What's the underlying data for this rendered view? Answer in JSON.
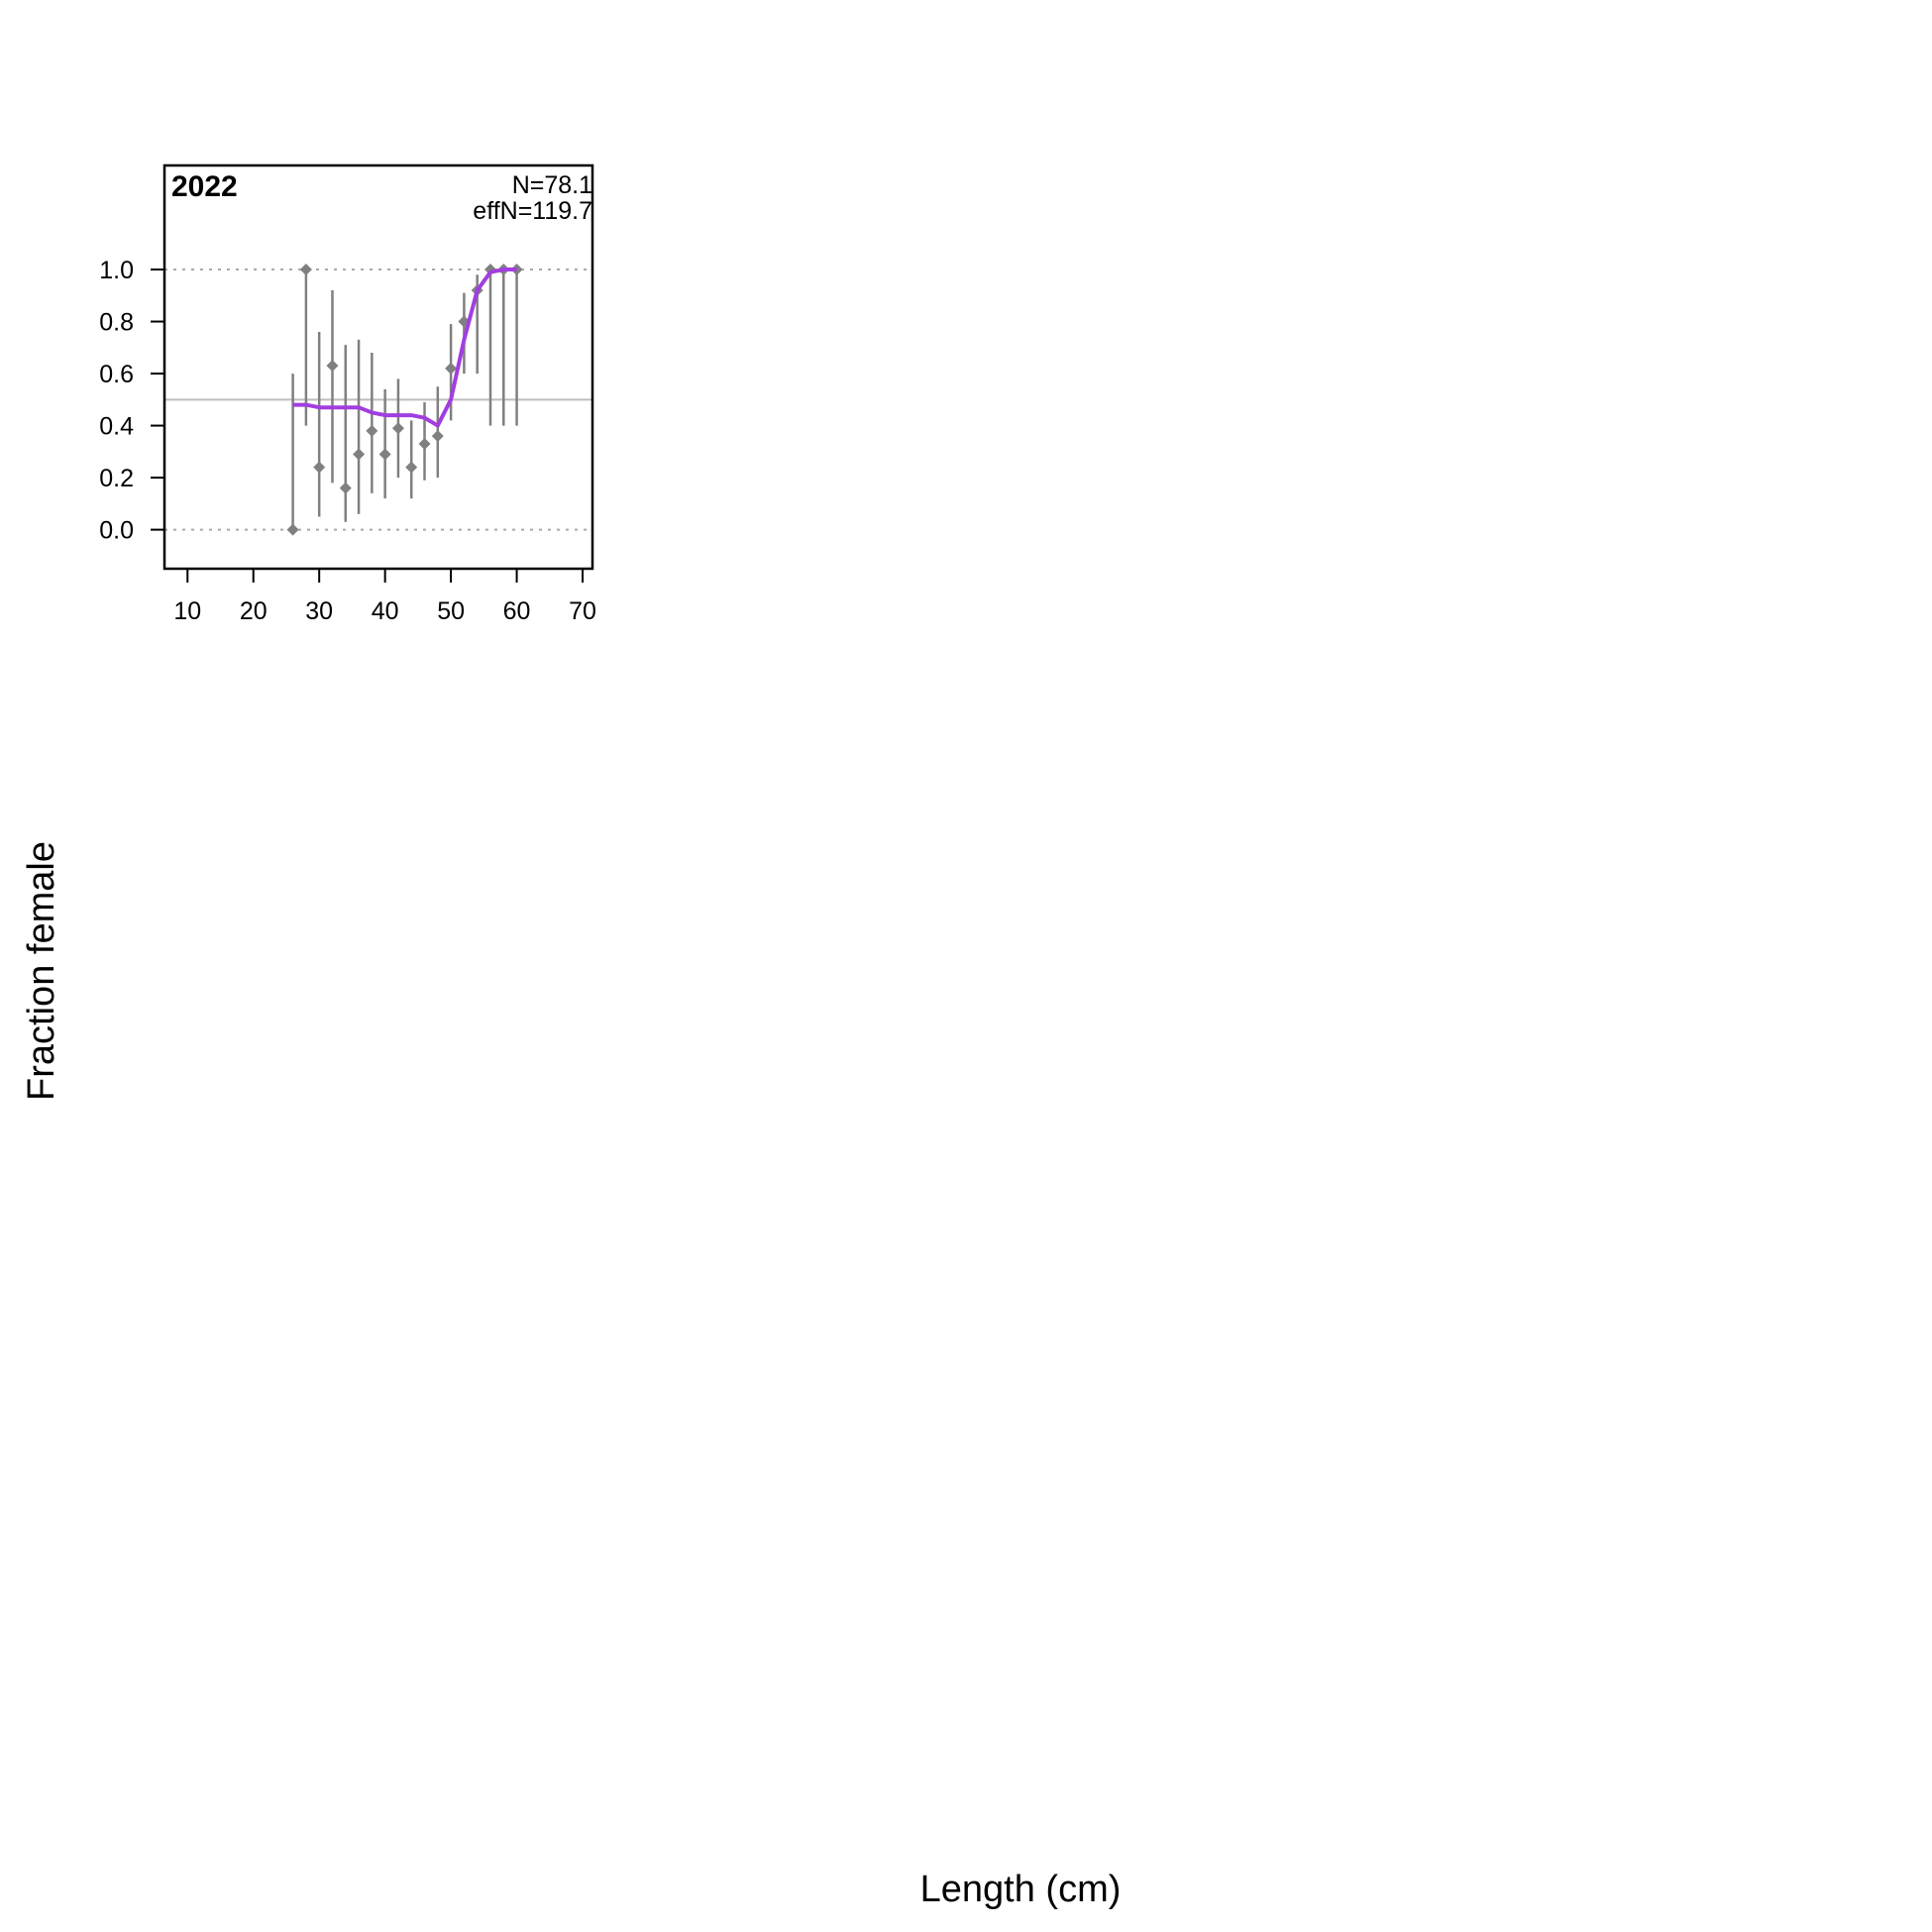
{
  "chart_data": {
    "type": "scatter",
    "panel_label": "2022",
    "annotations": [
      "N=78.1",
      "effN=119.7"
    ],
    "xlabel": "Length (cm)",
    "ylabel": "Fraction female",
    "xlim": [
      6.5,
      71.5
    ],
    "ylim": [
      -0.15,
      1.4
    ],
    "xticks": [
      "10",
      "20",
      "30",
      "40",
      "50",
      "60",
      "70"
    ],
    "yticks": [
      "0.0",
      "0.2",
      "0.4",
      "0.6",
      "0.8",
      "1.0"
    ],
    "reference_lines": [
      0.0,
      0.5,
      1.0
    ],
    "colors": {
      "observed": "#808080",
      "expected": "#a23ee0",
      "ref_line": "#bebebe",
      "frame": "#000000"
    },
    "observed": [
      {
        "x": 26,
        "y": 0.0,
        "lo": 0.0,
        "hi": 0.6
      },
      {
        "x": 28,
        "y": 1.0,
        "lo": 0.4,
        "hi": 1.0
      },
      {
        "x": 30,
        "y": 0.24,
        "lo": 0.05,
        "hi": 0.76
      },
      {
        "x": 32,
        "y": 0.63,
        "lo": 0.18,
        "hi": 0.92
      },
      {
        "x": 34,
        "y": 0.16,
        "lo": 0.03,
        "hi": 0.71
      },
      {
        "x": 36,
        "y": 0.29,
        "lo": 0.06,
        "hi": 0.73
      },
      {
        "x": 38,
        "y": 0.38,
        "lo": 0.14,
        "hi": 0.68
      },
      {
        "x": 40,
        "y": 0.29,
        "lo": 0.12,
        "hi": 0.54
      },
      {
        "x": 42,
        "y": 0.39,
        "lo": 0.2,
        "hi": 0.58
      },
      {
        "x": 44,
        "y": 0.24,
        "lo": 0.12,
        "hi": 0.42
      },
      {
        "x": 46,
        "y": 0.33,
        "lo": 0.19,
        "hi": 0.49
      },
      {
        "x": 48,
        "y": 0.36,
        "lo": 0.2,
        "hi": 0.55
      },
      {
        "x": 50,
        "y": 0.62,
        "lo": 0.42,
        "hi": 0.79
      },
      {
        "x": 52,
        "y": 0.8,
        "lo": 0.6,
        "hi": 0.91
      },
      {
        "x": 54,
        "y": 0.92,
        "lo": 0.6,
        "hi": 0.98
      },
      {
        "x": 56,
        "y": 1.0,
        "lo": 0.4,
        "hi": 1.0
      },
      {
        "x": 58,
        "y": 1.0,
        "lo": 0.4,
        "hi": 1.0
      },
      {
        "x": 60,
        "y": 1.0,
        "lo": 0.4,
        "hi": 1.0
      }
    ],
    "expected": {
      "x": [
        26,
        28,
        30,
        32,
        34,
        36,
        38,
        40,
        42,
        44,
        46,
        48,
        50,
        52,
        54,
        56,
        58,
        60
      ],
      "y": [
        0.48,
        0.48,
        0.47,
        0.47,
        0.47,
        0.47,
        0.45,
        0.44,
        0.44,
        0.44,
        0.43,
        0.4,
        0.5,
        0.73,
        0.92,
        0.99,
        1.0,
        1.0
      ]
    }
  }
}
